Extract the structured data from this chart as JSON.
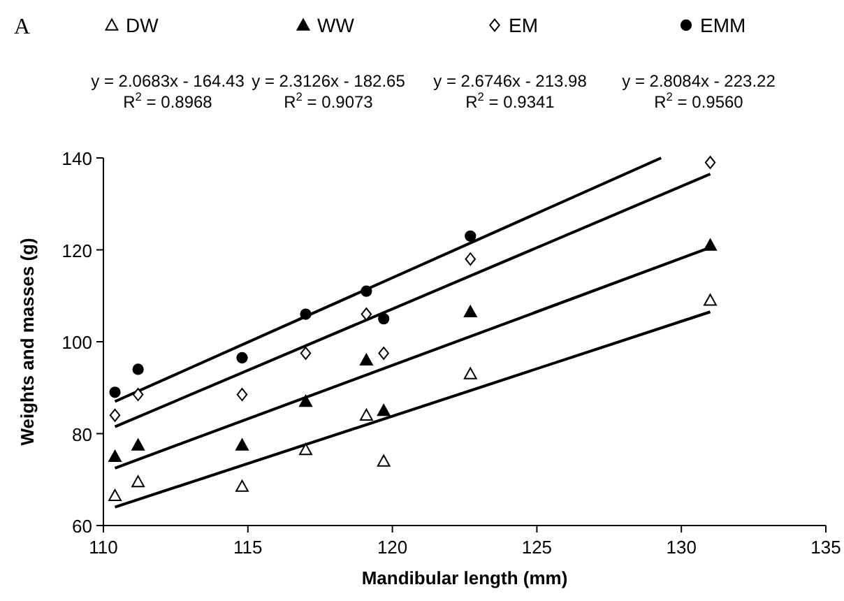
{
  "chart_data": {
    "type": "scatter",
    "title": "A",
    "xlabel": "Mandibular length (mm)",
    "ylabel": "Weights and masses (g)",
    "xlim": [
      110,
      135
    ],
    "xticks": [
      110,
      115,
      120,
      125,
      130,
      135
    ],
    "ylim": [
      60,
      140
    ],
    "yticks": [
      60,
      80,
      100,
      120,
      140
    ],
    "grid": false,
    "legend": "top",
    "annotations": [
      "y = 2.0683x - 164.43\nR$^{2}$ = 0.8968",
      "y = 2.3126x - 182.65\nR$^{2}$ = 0.9073",
      "y = 2.6746x - 213.98\nR$^{2}$ = 0.9341",
      "y = 2.8084x - 223.22\nR$^{2}$ = 0.9560"
    ],
    "series": [
      {
        "name": "DW",
        "marker": "triangle",
        "color": "#ffffff",
        "x": [
          110.4,
          111.2,
          114.8,
          117.0,
          119.1,
          119.7,
          122.7,
          131.0
        ],
        "values": [
          66.5,
          69.5,
          68.5,
          76.5,
          84,
          74,
          93,
          109
        ]
      },
      {
        "name": "WW",
        "marker": "triangle",
        "color": "#000000",
        "x": [
          110.4,
          111.2,
          114.8,
          117.0,
          119.1,
          119.7,
          122.7,
          131.0
        ],
        "values": [
          75,
          77.5,
          77.5,
          87,
          96,
          85,
          106.5,
          121
        ]
      },
      {
        "name": "EM",
        "marker": "diamond",
        "color": "#ffffff",
        "x": [
          110.4,
          111.2,
          114.8,
          117.0,
          119.1,
          119.7,
          122.7,
          131.0
        ],
        "values": [
          84,
          88.5,
          88.5,
          97.5,
          106,
          97.5,
          118,
          139
        ]
      },
      {
        "name": "EMM",
        "marker": "circle",
        "color": "#000000",
        "x": [
          110.4,
          111.2,
          114.8,
          117.0,
          119.1,
          119.7,
          122.7
        ],
        "values": [
          89,
          94,
          96.5,
          106,
          111,
          105,
          123
        ]
      },
      {
        "type": "line",
        "color": "#000000",
        "x": [
          110.4,
          131.0
        ],
        "values": [
          64,
          106.5
        ]
      },
      {
        "type": "line",
        "color": "#000000",
        "x": [
          110.4,
          131.0
        ],
        "values": [
          72.5,
          120.5
        ]
      },
      {
        "type": "line",
        "color": "#000000",
        "x": [
          110.4,
          131.0
        ],
        "values": [
          81.5,
          136.5
        ]
      },
      {
        "type": "line",
        "color": "#000000",
        "x": [
          110.4,
          129.3
        ],
        "values": [
          87,
          140
        ]
      }
    ]
  }
}
